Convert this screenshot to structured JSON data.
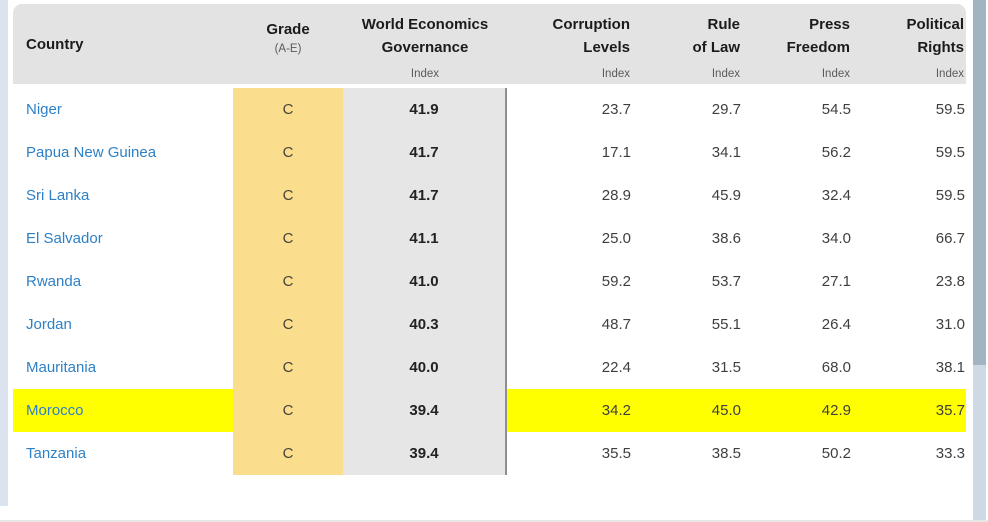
{
  "table": {
    "header": {
      "country": {
        "label": "Country"
      },
      "grade": {
        "label": "Grade",
        "sub": "(A-E)"
      },
      "weg": {
        "line1": "World Economics",
        "line2": "Governance",
        "sub": "Index"
      },
      "corruption": {
        "line1": "Corruption",
        "line2": "Levels",
        "sub": "Index"
      },
      "rule_of_law": {
        "line1": "Rule",
        "line2": "of Law",
        "sub": "Index"
      },
      "press_freedom": {
        "line1": "Press",
        "line2": "Freedom",
        "sub": "Index"
      },
      "political_rights": {
        "line1": "Political",
        "line2": "Rights",
        "sub": "Index"
      }
    },
    "rows": [
      {
        "country": "Niger",
        "grade": "C",
        "weg": "41.9",
        "corruption": "23.7",
        "rule_of_law": "29.7",
        "press_freedom": "54.5",
        "political_rights": "59.5",
        "highlighted": false
      },
      {
        "country": "Papua New Guinea",
        "grade": "C",
        "weg": "41.7",
        "corruption": "17.1",
        "rule_of_law": "34.1",
        "press_freedom": "56.2",
        "political_rights": "59.5",
        "highlighted": false
      },
      {
        "country": "Sri Lanka",
        "grade": "C",
        "weg": "41.7",
        "corruption": "28.9",
        "rule_of_law": "45.9",
        "press_freedom": "32.4",
        "political_rights": "59.5",
        "highlighted": false
      },
      {
        "country": "El Salvador",
        "grade": "C",
        "weg": "41.1",
        "corruption": "25.0",
        "rule_of_law": "38.6",
        "press_freedom": "34.0",
        "political_rights": "66.7",
        "highlighted": false
      },
      {
        "country": "Rwanda",
        "grade": "C",
        "weg": "41.0",
        "corruption": "59.2",
        "rule_of_law": "53.7",
        "press_freedom": "27.1",
        "political_rights": "23.8",
        "highlighted": false
      },
      {
        "country": "Jordan",
        "grade": "C",
        "weg": "40.3",
        "corruption": "48.7",
        "rule_of_law": "55.1",
        "press_freedom": "26.4",
        "political_rights": "31.0",
        "highlighted": false
      },
      {
        "country": "Mauritania",
        "grade": "C",
        "weg": "40.0",
        "corruption": "22.4",
        "rule_of_law": "31.5",
        "press_freedom": "68.0",
        "political_rights": "38.1",
        "highlighted": false
      },
      {
        "country": "Morocco",
        "grade": "C",
        "weg": "39.4",
        "corruption": "34.2",
        "rule_of_law": "45.0",
        "press_freedom": "42.9",
        "political_rights": "35.7",
        "highlighted": true
      },
      {
        "country": "Tanzania",
        "grade": "C",
        "weg": "39.4",
        "corruption": "35.5",
        "rule_of_law": "38.5",
        "press_freedom": "50.2",
        "political_rights": "33.3",
        "highlighted": false
      }
    ]
  },
  "colors": {
    "header_bg": "#e4e3e3",
    "grade_col_bg": "#fade8d",
    "weg_col_bg": "#e7e6e6",
    "divider": "#8f8f8f",
    "country_link": "#2e80c6",
    "highlight": "#ffff00",
    "left_strip": "#dbe4ee",
    "scrollbar_track": "#cdd9e3",
    "scrollbar_thumb": "#a2b3c2"
  }
}
